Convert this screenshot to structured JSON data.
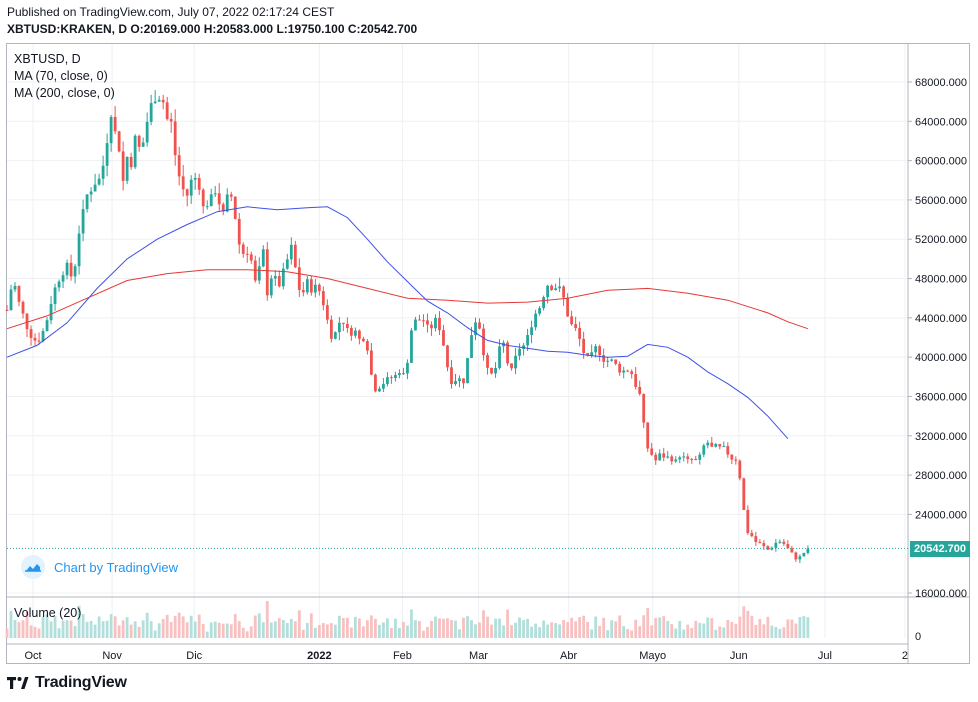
{
  "header": {
    "published": "Published on TradingView.com, July 07, 2022 02:17:24 CEST",
    "ohlc": "XBTUSD:KRAKEN, D  O:20169.000 H:20583.000 L:19750.100 C:20542.700"
  },
  "legend": {
    "symbol": "XBTUSD, D",
    "ma70": "MA (70, close, 0)",
    "ma200": "MA (200, close, 0)",
    "volume": "Volume (20)"
  },
  "watermark": {
    "text": "Chart by TradingView",
    "icon": "tradingview-cloud-icon"
  },
  "footer": {
    "brand": "TradingView",
    "icon": "tradingview-logo-icon"
  },
  "colors": {
    "up": "#26a69a",
    "down": "#ef5350",
    "ma70": "#3f51e6",
    "ma200": "#e53935",
    "vol_up": "#b2dfdb",
    "vol_down": "#f7c1c1",
    "grid": "#eef0f3",
    "axis_text": "#131722",
    "last_price": "#26a69a"
  },
  "chart_data": {
    "type": "candlestick",
    "title": "XBTUSD, D",
    "y_axis": {
      "range": [
        16000,
        70000
      ],
      "ticks": [
        "68000.000",
        "64000.000",
        "60000.000",
        "56000.000",
        "52000.000",
        "48000.000",
        "44000.000",
        "40000.000",
        "36000.000",
        "32000.000",
        "28000.000",
        "24000.000",
        "16000.000"
      ],
      "tick_values": [
        68000,
        64000,
        60000,
        56000,
        52000,
        48000,
        44000,
        40000,
        36000,
        32000,
        28000,
        24000,
        16000
      ]
    },
    "x_axis": {
      "labels": [
        "Oct",
        "Nov",
        "Dic",
        "2022",
        "Feb",
        "Mar",
        "Abr",
        "Mayo",
        "Jun",
        "Jul",
        "2"
      ],
      "label_days": [
        26,
        105,
        187,
        312,
        395,
        471,
        561,
        645,
        731,
        817,
        897
      ],
      "range_days": [
        0,
        900
      ]
    },
    "last_price": {
      "value": 20542.7,
      "label": "20542.700"
    },
    "volume_axis": {
      "tick": "0"
    },
    "price_anchors": [
      [
        0,
        44800
      ],
      [
        6,
        48000
      ],
      [
        12,
        45500
      ],
      [
        22,
        42500
      ],
      [
        30,
        41500
      ],
      [
        38,
        43000
      ],
      [
        46,
        46500
      ],
      [
        54,
        48500
      ],
      [
        60,
        49200
      ],
      [
        66,
        47800
      ],
      [
        72,
        52800
      ],
      [
        80,
        56500
      ],
      [
        88,
        57800
      ],
      [
        94,
        58200
      ],
      [
        99,
        61500
      ],
      [
        104,
        65000
      ],
      [
        108,
        62800
      ],
      [
        112,
        61300
      ],
      [
        116,
        57900
      ],
      [
        121,
        61000
      ],
      [
        124,
        59800
      ],
      [
        128,
        62200
      ],
      [
        134,
        60800
      ],
      [
        140,
        64000
      ],
      [
        146,
        66400
      ],
      [
        151,
        66700
      ],
      [
        156,
        66000
      ],
      [
        160,
        64200
      ],
      [
        164,
        63800
      ],
      [
        168,
        60600
      ],
      [
        174,
        57300
      ],
      [
        180,
        56500
      ],
      [
        186,
        58600
      ],
      [
        192,
        57500
      ],
      [
        196,
        55200
      ],
      [
        202,
        55900
      ],
      [
        206,
        56300
      ],
      [
        210,
        57700
      ],
      [
        214,
        53800
      ],
      [
        218,
        55200
      ],
      [
        222,
        57100
      ],
      [
        226,
        55600
      ],
      [
        232,
        51500
      ],
      [
        236,
        50600
      ],
      [
        240,
        50800
      ],
      [
        244,
        49800
      ],
      [
        248,
        47600
      ],
      [
        252,
        48900
      ],
      [
        256,
        50700
      ],
      [
        260,
        46600
      ],
      [
        264,
        48200
      ],
      [
        268,
        47900
      ],
      [
        272,
        47400
      ],
      [
        276,
        48600
      ],
      [
        280,
        49900
      ],
      [
        283,
        51300
      ],
      [
        286,
        50800
      ],
      [
        290,
        47300
      ],
      [
        295,
        46400
      ],
      [
        300,
        47600
      ],
      [
        305,
        46800
      ],
      [
        310,
        47300
      ],
      [
        314,
        46200
      ],
      [
        318,
        44800
      ],
      [
        322,
        42700
      ],
      [
        326,
        41800
      ],
      [
        330,
        43100
      ],
      [
        334,
        44000
      ],
      [
        338,
        43300
      ],
      [
        342,
        42100
      ],
      [
        346,
        43000
      ],
      [
        350,
        42200
      ],
      [
        354,
        41400
      ],
      [
        358,
        42600
      ],
      [
        362,
        39400
      ],
      [
        366,
        37000
      ],
      [
        370,
        36600
      ],
      [
        374,
        37500
      ],
      [
        378,
        37300
      ],
      [
        382,
        38100
      ],
      [
        386,
        37700
      ],
      [
        390,
        38500
      ],
      [
        394,
        38800
      ],
      [
        398,
        37500
      ],
      [
        402,
        41900
      ],
      [
        406,
        43700
      ],
      [
        410,
        43600
      ],
      [
        414,
        44000
      ],
      [
        418,
        43600
      ],
      [
        422,
        42300
      ],
      [
        426,
        43900
      ],
      [
        430,
        43500
      ],
      [
        434,
        42500
      ],
      [
        438,
        40100
      ],
      [
        442,
        38000
      ],
      [
        446,
        37200
      ],
      [
        450,
        38300
      ],
      [
        454,
        37200
      ],
      [
        458,
        38000
      ],
      [
        462,
        41600
      ],
      [
        466,
        43200
      ],
      [
        470,
        44300
      ],
      [
        474,
        41900
      ],
      [
        478,
        39200
      ],
      [
        482,
        38000
      ],
      [
        486,
        38400
      ],
      [
        490,
        39400
      ],
      [
        494,
        42100
      ],
      [
        498,
        40600
      ],
      [
        502,
        38300
      ],
      [
        506,
        38800
      ],
      [
        510,
        41000
      ],
      [
        514,
        40900
      ],
      [
        518,
        41400
      ],
      [
        522,
        42600
      ],
      [
        526,
        44200
      ],
      [
        530,
        44700
      ],
      [
        534,
        45500
      ],
      [
        538,
        47300
      ],
      [
        542,
        47500
      ],
      [
        546,
        46900
      ],
      [
        550,
        47400
      ],
      [
        554,
        46400
      ],
      [
        558,
        45500
      ],
      [
        562,
        43200
      ],
      [
        566,
        43300
      ],
      [
        570,
        42300
      ],
      [
        574,
        41300
      ],
      [
        578,
        39700
      ],
      [
        582,
        39900
      ],
      [
        586,
        40400
      ],
      [
        590,
        41400
      ],
      [
        594,
        39600
      ],
      [
        598,
        40000
      ],
      [
        602,
        39300
      ],
      [
        606,
        39900
      ],
      [
        610,
        38500
      ],
      [
        614,
        38900
      ],
      [
        618,
        38300
      ],
      [
        622,
        39100
      ],
      [
        626,
        37600
      ],
      [
        630,
        36700
      ],
      [
        634,
        35600
      ],
      [
        638,
        30500
      ],
      [
        642,
        31000
      ],
      [
        646,
        29200
      ],
      [
        650,
        29800
      ],
      [
        654,
        30300
      ],
      [
        658,
        29500
      ],
      [
        662,
        30100
      ],
      [
        666,
        29200
      ],
      [
        670,
        29600
      ],
      [
        674,
        30400
      ],
      [
        678,
        29100
      ],
      [
        682,
        29800
      ],
      [
        686,
        29400
      ],
      [
        690,
        29500
      ],
      [
        694,
        30200
      ],
      [
        698,
        31700
      ],
      [
        702,
        30900
      ],
      [
        706,
        30600
      ],
      [
        710,
        31200
      ],
      [
        714,
        30300
      ],
      [
        718,
        31100
      ],
      [
        722,
        29300
      ],
      [
        726,
        30100
      ],
      [
        730,
        29100
      ],
      [
        734,
        26500
      ],
      [
        738,
        22300
      ],
      [
        742,
        22100
      ],
      [
        746,
        21500
      ],
      [
        750,
        20900
      ],
      [
        754,
        21100
      ],
      [
        758,
        20300
      ],
      [
        762,
        20500
      ],
      [
        766,
        20900
      ],
      [
        770,
        21300
      ],
      [
        774,
        21200
      ],
      [
        778,
        20800
      ],
      [
        782,
        20200
      ],
      [
        786,
        19800
      ],
      [
        790,
        19300
      ],
      [
        794,
        20000
      ],
      [
        798,
        20200
      ],
      [
        802,
        20542
      ]
    ],
    "ma70": [
      [
        0,
        40000
      ],
      [
        30,
        41200
      ],
      [
        60,
        43500
      ],
      [
        90,
        47000
      ],
      [
        120,
        50000
      ],
      [
        150,
        52000
      ],
      [
        180,
        53500
      ],
      [
        210,
        54800
      ],
      [
        240,
        55300
      ],
      [
        270,
        55000
      ],
      [
        300,
        55200
      ],
      [
        320,
        55300
      ],
      [
        340,
        54200
      ],
      [
        360,
        52000
      ],
      [
        380,
        49700
      ],
      [
        400,
        47700
      ],
      [
        420,
        45700
      ],
      [
        440,
        44500
      ],
      [
        460,
        43000
      ],
      [
        480,
        41700
      ],
      [
        500,
        41200
      ],
      [
        520,
        40900
      ],
      [
        540,
        40600
      ],
      [
        560,
        40500
      ],
      [
        580,
        40200
      ],
      [
        600,
        40000
      ],
      [
        620,
        40100
      ],
      [
        640,
        41300
      ],
      [
        660,
        41000
      ],
      [
        680,
        40000
      ],
      [
        700,
        38500
      ],
      [
        720,
        37300
      ],
      [
        740,
        35900
      ],
      [
        760,
        34000
      ],
      [
        780,
        31700
      ]
    ],
    "ma200": [
      [
        0,
        42900
      ],
      [
        40,
        44200
      ],
      [
        80,
        46000
      ],
      [
        120,
        47800
      ],
      [
        160,
        48500
      ],
      [
        200,
        48900
      ],
      [
        240,
        48900
      ],
      [
        280,
        48700
      ],
      [
        320,
        48000
      ],
      [
        360,
        47000
      ],
      [
        400,
        46000
      ],
      [
        440,
        45800
      ],
      [
        480,
        45500
      ],
      [
        520,
        45600
      ],
      [
        560,
        46000
      ],
      [
        600,
        46800
      ],
      [
        640,
        47000
      ],
      [
        680,
        46500
      ],
      [
        720,
        45800
      ],
      [
        760,
        44500
      ],
      [
        780,
        43600
      ],
      [
        800,
        42900
      ]
    ]
  }
}
